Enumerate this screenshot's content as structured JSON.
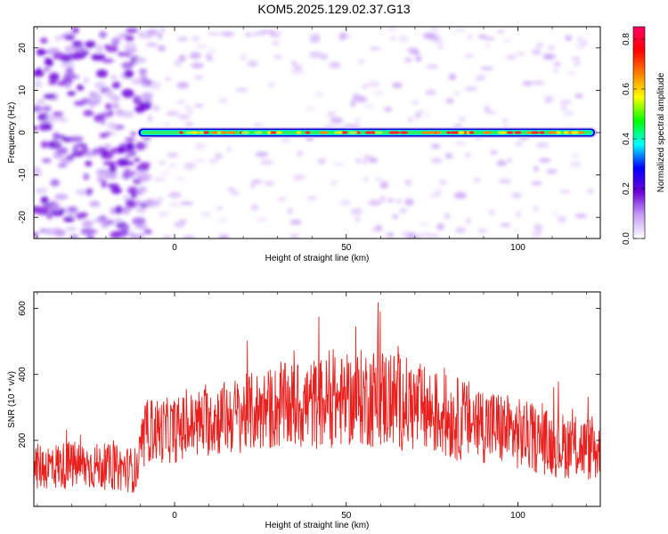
{
  "title": "KOM5.2025.129.02.37.G13",
  "chart_data": [
    {
      "type": "heatmap",
      "xlabel": "Height of straight line (km)",
      "ylabel": "Frequency (Hz)",
      "xlim": [
        -41,
        124
      ],
      "ylim": [
        -25,
        25
      ],
      "x_ticks": [
        0,
        50,
        100
      ],
      "y_ticks": [
        -20,
        -10,
        0,
        10,
        20
      ],
      "colorbar": {
        "label": "Normalized spectral amplitude",
        "range": [
          0.0,
          0.85
        ],
        "ticks": [
          0.0,
          0.2,
          0.4,
          0.6,
          0.8
        ],
        "colors": [
          "#ffffff",
          "#c59cf6",
          "#6a00d8",
          "#0000ff",
          "#00ffff",
          "#00ff00",
          "#ffff00",
          "#ff8000",
          "#ff0000",
          "#ff0066"
        ]
      },
      "features": {
        "carrier_frequency_hz": 0,
        "carrier_start_km": -11,
        "carrier_end_km": 123,
        "noise_region_end_km": -10
      }
    },
    {
      "type": "line",
      "xlabel": "Height of straight line (km)",
      "ylabel": "SNR (10 * v/v)",
      "xlim": [
        -41,
        124
      ],
      "ylim": [
        0,
        650
      ],
      "x_ticks": [
        0,
        50,
        100
      ],
      "y_ticks": [
        200,
        400,
        600
      ],
      "color": "#e8211f",
      "profile": {
        "x": [
          -41,
          -30,
          -20,
          -11,
          -8,
          0,
          10,
          20,
          30,
          40,
          50,
          55,
          60,
          65,
          70,
          80,
          90,
          100,
          110,
          124
        ],
        "mean": [
          120,
          125,
          120,
          110,
          230,
          230,
          260,
          280,
          300,
          310,
          320,
          330,
          330,
          320,
          300,
          270,
          250,
          220,
          190,
          170
        ],
        "amplitude": [
          70,
          75,
          70,
          70,
          100,
          100,
          110,
          120,
          130,
          140,
          140,
          150,
          160,
          150,
          140,
          130,
          120,
          110,
          100,
          100
        ]
      }
    }
  ]
}
